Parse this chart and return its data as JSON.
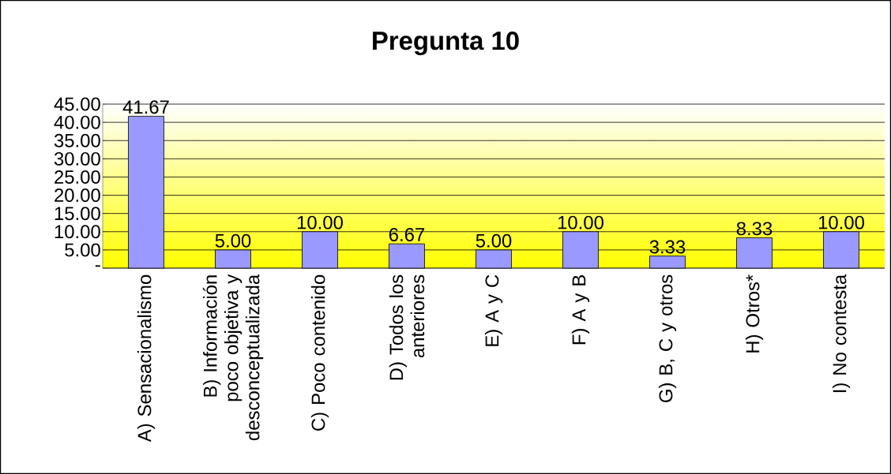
{
  "chart_data": {
    "type": "bar",
    "title": "Pregunta 10",
    "categories": [
      "A) Sensacionalismo",
      "B) Información poco objetiva y desconceptualizada",
      "C) Poco contenido",
      "D) Todos los anteriores",
      "E) A y C",
      "F) A y B",
      "G) B, C y otros",
      "H) Otros*",
      "I) No contesta"
    ],
    "values": [
      41.67,
      5.0,
      10.0,
      6.67,
      5.0,
      10.0,
      3.33,
      8.33,
      10.0
    ],
    "value_labels": [
      "41.67",
      "5.00",
      "10.00",
      "6.67",
      "5.00",
      "10.00",
      "3.33",
      "8.33",
      "10.00"
    ],
    "color": "#9999ff",
    "ylim": [
      0,
      45
    ],
    "yticks": [
      {
        "value": 0,
        "label": "-"
      },
      {
        "value": 5,
        "label": "5.00"
      },
      {
        "value": 10,
        "label": "10.00"
      },
      {
        "value": 15,
        "label": "15.00"
      },
      {
        "value": 20,
        "label": "20.00"
      },
      {
        "value": 25,
        "label": "25.00"
      },
      {
        "value": 30,
        "label": "30.00"
      },
      {
        "value": 35,
        "label": "35.00"
      },
      {
        "value": 40,
        "label": "40.00"
      },
      {
        "value": 45,
        "label": "45.00"
      }
    ],
    "grid": "y"
  }
}
